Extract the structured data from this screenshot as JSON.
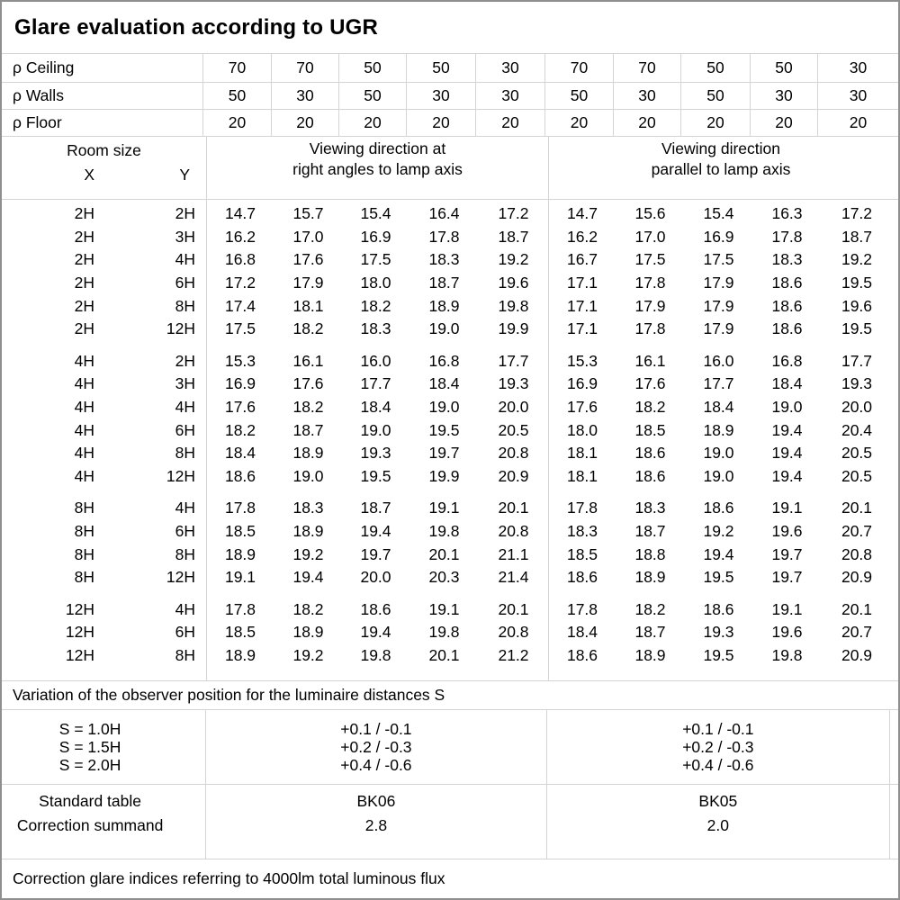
{
  "title": "Glare evaluation according to UGR",
  "colors": {
    "text": "#000000",
    "grid_line": "#d4d4d4",
    "outer_border": "#8f8f8f",
    "background": "#ffffff"
  },
  "header": {
    "rho_ceiling": {
      "label": "ρ Ceiling",
      "values": [
        "70",
        "70",
        "50",
        "50",
        "30",
        "70",
        "70",
        "50",
        "50",
        "30"
      ]
    },
    "rho_walls": {
      "label": "ρ Walls",
      "values": [
        "50",
        "30",
        "50",
        "30",
        "30",
        "50",
        "30",
        "50",
        "30",
        "30"
      ]
    },
    "rho_floor": {
      "label": "ρ Floor",
      "values": [
        "20",
        "20",
        "20",
        "20",
        "20",
        "20",
        "20",
        "20",
        "20",
        "20"
      ]
    },
    "room_size": {
      "label": "Room size",
      "x_label": "X",
      "y_label": "Y"
    },
    "group_right_angles": [
      "Viewing direction at",
      "right angles to lamp axis"
    ],
    "group_parallel": [
      "Viewing direction",
      "parallel to lamp axis"
    ]
  },
  "table": {
    "blocks": [
      {
        "x_group": "2H",
        "rows": [
          {
            "x": "2H",
            "y": "2H",
            "right_angles": [
              "14.7",
              "15.7",
              "15.4",
              "16.4",
              "17.2"
            ],
            "parallel": [
              "14.7",
              "15.6",
              "15.4",
              "16.3",
              "17.2"
            ]
          },
          {
            "x": "2H",
            "y": "3H",
            "right_angles": [
              "16.2",
              "17.0",
              "16.9",
              "17.8",
              "18.7"
            ],
            "parallel": [
              "16.2",
              "17.0",
              "16.9",
              "17.8",
              "18.7"
            ]
          },
          {
            "x": "2H",
            "y": "4H",
            "right_angles": [
              "16.8",
              "17.6",
              "17.5",
              "18.3",
              "19.2"
            ],
            "parallel": [
              "16.7",
              "17.5",
              "17.5",
              "18.3",
              "19.2"
            ]
          },
          {
            "x": "2H",
            "y": "6H",
            "right_angles": [
              "17.2",
              "17.9",
              "18.0",
              "18.7",
              "19.6"
            ],
            "parallel": [
              "17.1",
              "17.8",
              "17.9",
              "18.6",
              "19.5"
            ]
          },
          {
            "x": "2H",
            "y": "8H",
            "right_angles": [
              "17.4",
              "18.1",
              "18.2",
              "18.9",
              "19.8"
            ],
            "parallel": [
              "17.1",
              "17.9",
              "17.9",
              "18.6",
              "19.6"
            ]
          },
          {
            "x": "2H",
            "y": "12H",
            "right_angles": [
              "17.5",
              "18.2",
              "18.3",
              "19.0",
              "19.9"
            ],
            "parallel": [
              "17.1",
              "17.8",
              "17.9",
              "18.6",
              "19.5"
            ]
          }
        ]
      },
      {
        "x_group": "4H",
        "rows": [
          {
            "x": "4H",
            "y": "2H",
            "right_angles": [
              "15.3",
              "16.1",
              "16.0",
              "16.8",
              "17.7"
            ],
            "parallel": [
              "15.3",
              "16.1",
              "16.0",
              "16.8",
              "17.7"
            ]
          },
          {
            "x": "4H",
            "y": "3H",
            "right_angles": [
              "16.9",
              "17.6",
              "17.7",
              "18.4",
              "19.3"
            ],
            "parallel": [
              "16.9",
              "17.6",
              "17.7",
              "18.4",
              "19.3"
            ]
          },
          {
            "x": "4H",
            "y": "4H",
            "right_angles": [
              "17.6",
              "18.2",
              "18.4",
              "19.0",
              "20.0"
            ],
            "parallel": [
              "17.6",
              "18.2",
              "18.4",
              "19.0",
              "20.0"
            ]
          },
          {
            "x": "4H",
            "y": "6H",
            "right_angles": [
              "18.2",
              "18.7",
              "19.0",
              "19.5",
              "20.5"
            ],
            "parallel": [
              "18.0",
              "18.5",
              "18.9",
              "19.4",
              "20.4"
            ]
          },
          {
            "x": "4H",
            "y": "8H",
            "right_angles": [
              "18.4",
              "18.9",
              "19.3",
              "19.7",
              "20.8"
            ],
            "parallel": [
              "18.1",
              "18.6",
              "19.0",
              "19.4",
              "20.5"
            ]
          },
          {
            "x": "4H",
            "y": "12H",
            "right_angles": [
              "18.6",
              "19.0",
              "19.5",
              "19.9",
              "20.9"
            ],
            "parallel": [
              "18.1",
              "18.6",
              "19.0",
              "19.4",
              "20.5"
            ]
          }
        ]
      },
      {
        "x_group": "8H",
        "rows": [
          {
            "x": "8H",
            "y": "4H",
            "right_angles": [
              "17.8",
              "18.3",
              "18.7",
              "19.1",
              "20.1"
            ],
            "parallel": [
              "17.8",
              "18.3",
              "18.6",
              "19.1",
              "20.1"
            ]
          },
          {
            "x": "8H",
            "y": "6H",
            "right_angles": [
              "18.5",
              "18.9",
              "19.4",
              "19.8",
              "20.8"
            ],
            "parallel": [
              "18.3",
              "18.7",
              "19.2",
              "19.6",
              "20.7"
            ]
          },
          {
            "x": "8H",
            "y": "8H",
            "right_angles": [
              "18.9",
              "19.2",
              "19.7",
              "20.1",
              "21.1"
            ],
            "parallel": [
              "18.5",
              "18.8",
              "19.4",
              "19.7",
              "20.8"
            ]
          },
          {
            "x": "8H",
            "y": "12H",
            "right_angles": [
              "19.1",
              "19.4",
              "20.0",
              "20.3",
              "21.4"
            ],
            "parallel": [
              "18.6",
              "18.9",
              "19.5",
              "19.7",
              "20.9"
            ]
          }
        ]
      },
      {
        "x_group": "12H",
        "rows": [
          {
            "x": "12H",
            "y": "4H",
            "right_angles": [
              "17.8",
              "18.2",
              "18.6",
              "19.1",
              "20.1"
            ],
            "parallel": [
              "17.8",
              "18.2",
              "18.6",
              "19.1",
              "20.1"
            ]
          },
          {
            "x": "12H",
            "y": "6H",
            "right_angles": [
              "18.5",
              "18.9",
              "19.4",
              "19.8",
              "20.8"
            ],
            "parallel": [
              "18.4",
              "18.7",
              "19.3",
              "19.6",
              "20.7"
            ]
          },
          {
            "x": "12H",
            "y": "8H",
            "right_angles": [
              "18.9",
              "19.2",
              "19.8",
              "20.1",
              "21.2"
            ],
            "parallel": [
              "18.6",
              "18.9",
              "19.5",
              "19.8",
              "20.9"
            ]
          }
        ]
      }
    ]
  },
  "variation_note": "Variation of the observer position for the luminaire distances S",
  "s_variation": {
    "labels": [
      "S = 1.0H",
      "S = 1.5H",
      "S = 2.0H"
    ],
    "right_angles": [
      "+0.1 / -0.1",
      "+0.2 / -0.3",
      "+0.4 / -0.6"
    ],
    "parallel": [
      "+0.1 / -0.1",
      "+0.2 / -0.3",
      "+0.4 / -0.6"
    ]
  },
  "standard": {
    "labels": [
      "Standard table",
      "Correction summand"
    ],
    "right_angles": [
      "BK06",
      "2.8"
    ],
    "parallel": [
      "BK05",
      "2.0"
    ]
  },
  "footer_note": "Correction glare indices referring to 4000lm total luminous flux"
}
